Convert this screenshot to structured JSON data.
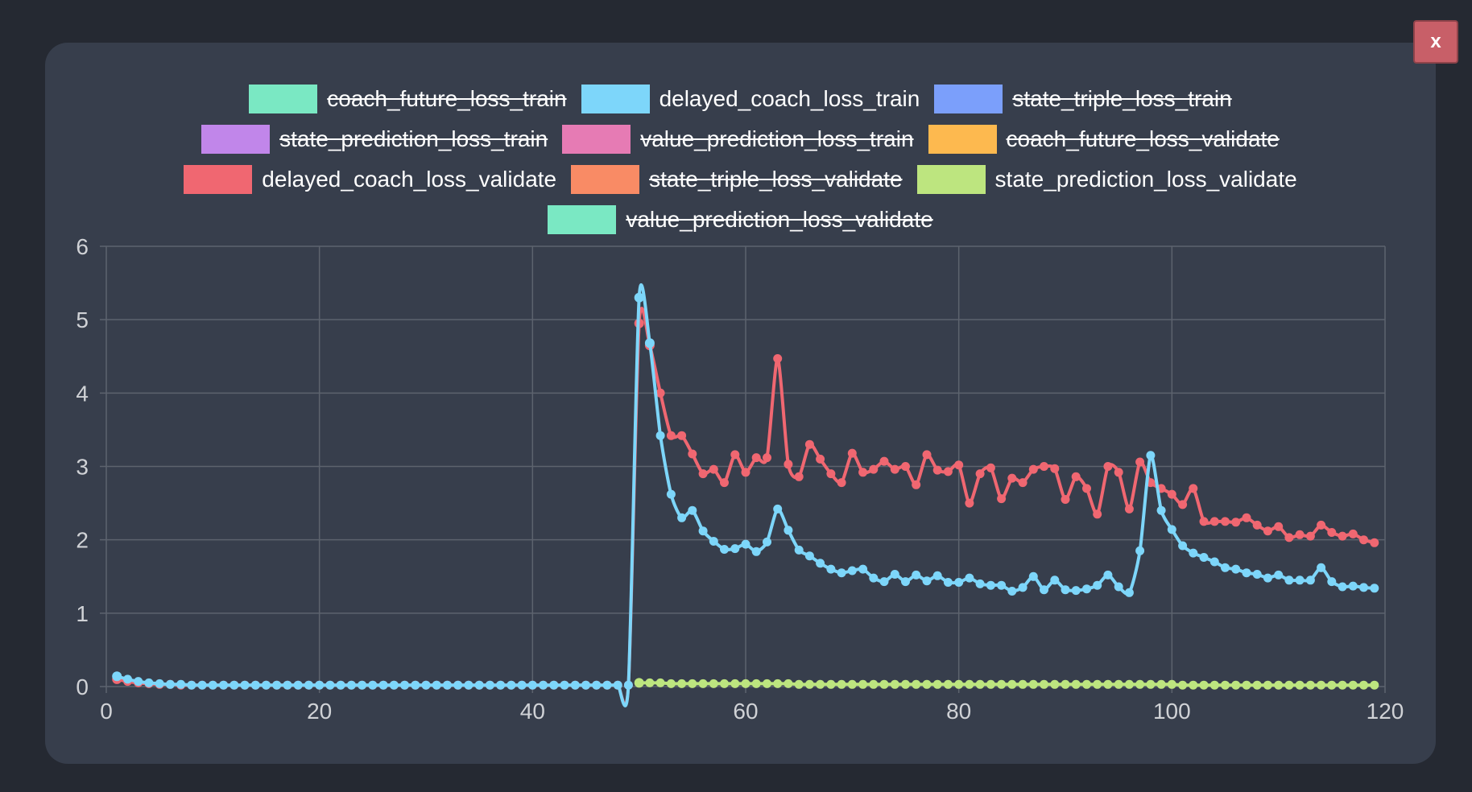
{
  "close_button": {
    "label": "x"
  },
  "colors": {
    "page_bg": "#252932",
    "modal_bg": "#373e4c",
    "grid": "#5d636e",
    "tick_text": "#d0d2d6",
    "close_bg": "#c85f68"
  },
  "legend": {
    "rows": [
      [
        {
          "label": "coach_future_loss_train",
          "color": "#7ae8c3",
          "hidden": true
        },
        {
          "label": "delayed_coach_loss_train",
          "color": "#7dd6fa",
          "hidden": false
        },
        {
          "label": "state_triple_loss_train",
          "color": "#7b9ffb",
          "hidden": true
        }
      ],
      [
        {
          "label": "state_prediction_loss_train",
          "color": "#c186ea",
          "hidden": true
        },
        {
          "label": "value_prediction_loss_train",
          "color": "#e67bb4",
          "hidden": true
        },
        {
          "label": "coach_future_loss_validate",
          "color": "#fdb94f",
          "hidden": true
        }
      ],
      [
        {
          "label": "delayed_coach_loss_validate",
          "color": "#f06771",
          "hidden": false
        },
        {
          "label": "state_triple_loss_validate",
          "color": "#f98b65",
          "hidden": true
        },
        {
          "label": "state_prediction_loss_validate",
          "color": "#bde57f",
          "hidden": false
        }
      ],
      [
        {
          "label": "value_prediction_loss_validate",
          "color": "#7ae8c3",
          "hidden": true
        }
      ]
    ]
  },
  "chart_data": {
    "type": "line",
    "xlim": [
      0,
      120
    ],
    "ylim": [
      0,
      6
    ],
    "xticks": [
      "0",
      "20",
      "40",
      "60",
      "80",
      "100",
      "120"
    ],
    "yticks": [
      "0",
      "1",
      "2",
      "3",
      "4",
      "5",
      "6"
    ],
    "grid": true,
    "legend_position": "top",
    "series": [
      {
        "name": "delayed_coach_loss_validate",
        "color": "#f06771",
        "x_start": 1,
        "values": [
          0.1,
          0.07,
          0.05,
          0.04,
          0.03,
          0.03,
          0.02,
          0.02,
          0.02,
          0.02,
          0.02,
          0.02,
          0.02,
          0.02,
          0.02,
          0.02,
          0.02,
          0.02,
          0.02,
          0.02,
          0.02,
          0.02,
          0.02,
          0.02,
          0.02,
          0.02,
          0.02,
          0.02,
          0.02,
          0.02,
          0.02,
          0.02,
          0.02,
          0.02,
          0.02,
          0.02,
          0.02,
          0.02,
          0.02,
          0.02,
          0.02,
          0.02,
          0.02,
          0.02,
          0.02,
          0.02,
          0.02,
          0.02,
          0.02,
          4.95,
          4.65,
          4.0,
          3.42,
          3.42,
          3.17,
          2.9,
          2.96,
          2.78,
          3.16,
          2.92,
          3.12,
          3.12,
          4.47,
          3.03,
          2.86,
          3.3,
          3.1,
          2.9,
          2.78,
          3.18,
          2.92,
          2.96,
          3.07,
          2.96,
          3.0,
          2.75,
          3.16,
          2.95,
          2.93,
          3.02,
          2.5,
          2.9,
          2.98,
          2.56,
          2.84,
          2.78,
          2.96,
          3.0,
          2.97,
          2.55,
          2.86,
          2.7,
          2.35,
          3.0,
          2.92,
          2.42,
          3.06,
          2.78,
          2.7,
          2.62,
          2.48,
          2.7,
          2.25,
          2.25,
          2.25,
          2.24,
          2.3,
          2.2,
          2.12,
          2.18,
          2.03,
          2.07,
          2.05,
          2.2,
          2.1,
          2.05,
          2.08,
          2.0,
          1.96
        ]
      },
      {
        "name": "delayed_coach_loss_train",
        "color": "#7dd6fa",
        "x_start": 1,
        "values": [
          0.14,
          0.1,
          0.07,
          0.05,
          0.04,
          0.03,
          0.03,
          0.02,
          0.02,
          0.02,
          0.02,
          0.02,
          0.02,
          0.02,
          0.02,
          0.02,
          0.02,
          0.02,
          0.02,
          0.02,
          0.02,
          0.02,
          0.02,
          0.02,
          0.02,
          0.02,
          0.02,
          0.02,
          0.02,
          0.02,
          0.02,
          0.02,
          0.02,
          0.02,
          0.02,
          0.02,
          0.02,
          0.02,
          0.02,
          0.02,
          0.02,
          0.02,
          0.02,
          0.02,
          0.02,
          0.02,
          0.02,
          0.02,
          0.02,
          5.3,
          4.68,
          3.42,
          2.62,
          2.3,
          2.4,
          2.12,
          1.98,
          1.87,
          1.88,
          1.94,
          1.84,
          1.97,
          2.42,
          2.13,
          1.86,
          1.78,
          1.68,
          1.6,
          1.55,
          1.58,
          1.6,
          1.48,
          1.43,
          1.53,
          1.43,
          1.52,
          1.44,
          1.51,
          1.42,
          1.42,
          1.48,
          1.4,
          1.38,
          1.38,
          1.3,
          1.35,
          1.5,
          1.32,
          1.45,
          1.32,
          1.31,
          1.33,
          1.38,
          1.52,
          1.36,
          1.28,
          1.85,
          3.15,
          2.4,
          2.14,
          1.92,
          1.82,
          1.76,
          1.7,
          1.62,
          1.6,
          1.55,
          1.53,
          1.48,
          1.52,
          1.45,
          1.45,
          1.45,
          1.62,
          1.43,
          1.36,
          1.37,
          1.35,
          1.34
        ]
      },
      {
        "name": "state_prediction_loss_validate",
        "color": "#bde57f",
        "x_start": 50,
        "values": [
          0.05,
          0.05,
          0.05,
          0.04,
          0.04,
          0.04,
          0.04,
          0.04,
          0.04,
          0.04,
          0.04,
          0.04,
          0.04,
          0.04,
          0.04,
          0.03,
          0.03,
          0.03,
          0.03,
          0.03,
          0.03,
          0.03,
          0.03,
          0.03,
          0.03,
          0.03,
          0.03,
          0.03,
          0.03,
          0.03,
          0.03,
          0.03,
          0.03,
          0.03,
          0.03,
          0.03,
          0.03,
          0.03,
          0.03,
          0.03,
          0.03,
          0.03,
          0.03,
          0.03,
          0.03,
          0.03,
          0.03,
          0.03,
          0.03,
          0.03,
          0.03,
          0.02,
          0.02,
          0.02,
          0.02,
          0.02,
          0.02,
          0.02,
          0.02,
          0.02,
          0.02,
          0.02,
          0.02,
          0.02,
          0.02,
          0.02,
          0.02,
          0.02,
          0.02,
          0.02
        ]
      }
    ]
  }
}
